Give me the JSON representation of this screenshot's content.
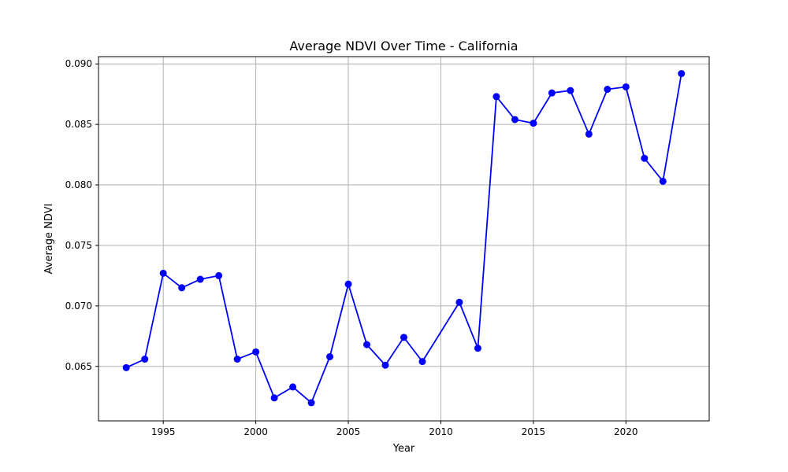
{
  "chart_data": {
    "type": "line",
    "title": "Average NDVI Over Time - California",
    "xlabel": "Year",
    "ylabel": "Average NDVI",
    "grid": true,
    "xlim": [
      1991.5,
      2024.5
    ],
    "ylim": [
      0.0605,
      0.0906
    ],
    "x_ticks": [
      1995,
      2000,
      2005,
      2010,
      2015,
      2020
    ],
    "y_ticks": [
      0.065,
      0.07,
      0.075,
      0.08,
      0.085,
      0.09
    ],
    "y_tick_labels": [
      "0.065",
      "0.070",
      "0.075",
      "0.080",
      "0.085",
      "0.090"
    ],
    "series_color": "#0000ff",
    "series": [
      {
        "name": "",
        "marker": "circle",
        "x": [
          1993,
          1994,
          1995,
          1996,
          1997,
          1998,
          1999,
          2000,
          2001,
          2002,
          2003,
          2004,
          2005,
          2006,
          2007,
          2008,
          2009,
          2011,
          2012,
          2013,
          2014,
          2015,
          2016,
          2017,
          2018,
          2019,
          2020,
          2021,
          2022,
          2023
        ],
        "y": [
          0.0649,
          0.0656,
          0.0727,
          0.0715,
          0.0722,
          0.0725,
          0.0656,
          0.0662,
          0.0624,
          0.0633,
          0.062,
          0.0658,
          0.0718,
          0.0668,
          0.0651,
          0.0674,
          0.0654,
          0.0703,
          0.0665,
          0.0873,
          0.0854,
          0.0851,
          0.0876,
          0.0878,
          0.0842,
          0.0879,
          0.0881,
          0.0822,
          0.0803,
          0.0892
        ]
      }
    ]
  }
}
